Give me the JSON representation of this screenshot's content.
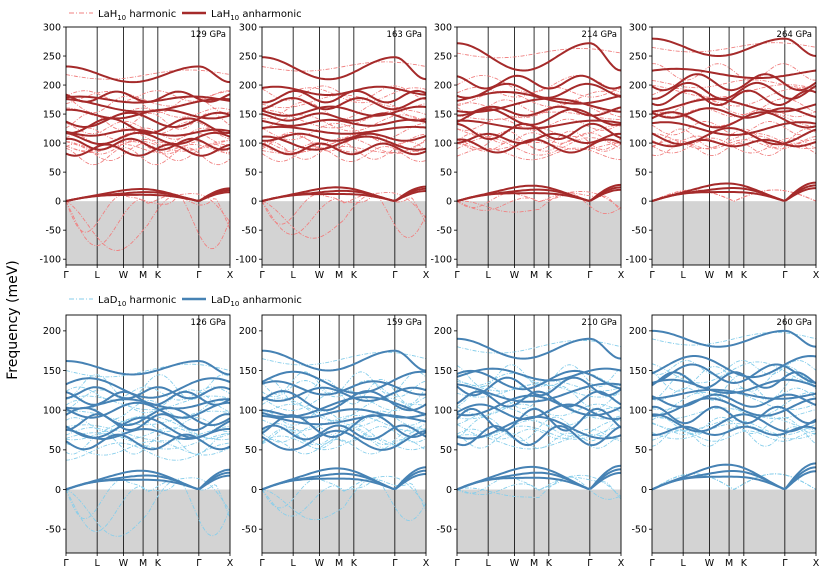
{
  "ylabel": "Frequency (meV)",
  "kpoints": [
    "Γ",
    "L",
    "W",
    "M",
    "K",
    "Γ",
    "X"
  ],
  "kpos": [
    0,
    0.19,
    0.35,
    0.47,
    0.56,
    0.81,
    1.0
  ],
  "colors": {
    "lah_harmonic": "#f08080",
    "lah_anharmonic": "#a52a2a",
    "lad_harmonic": "#87ceeb",
    "lad_anharmonic": "#4682b4",
    "imaginary_fill": "#d3d3d3"
  },
  "legends": {
    "top": {
      "harmonic": {
        "base": "LaH",
        "sub": "10",
        "rest": " harmonic"
      },
      "anharmonic": {
        "base": "LaH",
        "sub": "10",
        "rest": " anharmonic"
      }
    },
    "bottom": {
      "harmonic": {
        "base": "LaD",
        "sub": "10",
        "rest": " harmonic"
      },
      "anharmonic": {
        "base": "LaD",
        "sub": "10",
        "rest": " anharmonic"
      }
    }
  },
  "chart_data": [
    {
      "type": "line",
      "row": 0,
      "col": 0,
      "material": "LaH10",
      "pressure": "129 GPa",
      "ylim": [
        -110,
        300
      ],
      "yticks": [
        -100,
        -50,
        0,
        50,
        100,
        150,
        200,
        250,
        300
      ],
      "anharmonic_bands": [
        180,
        175,
        165,
        150,
        140,
        130,
        118,
        108,
        98,
        88
      ],
      "anharmonic_top": 225,
      "anharmonic_top_range": [
        205,
        232
      ],
      "harmonic_top": 218,
      "harmonic_min": -100,
      "low_acoustic_max": 22
    },
    {
      "type": "line",
      "row": 0,
      "col": 1,
      "material": "LaH10",
      "pressure": "163 GPa",
      "ylim": [
        -110,
        300
      ],
      "yticks": [
        -100,
        -50,
        0,
        50,
        100,
        150,
        200,
        250,
        300
      ],
      "anharmonic_bands": [
        190,
        180,
        168,
        155,
        145,
        135,
        122,
        110,
        100,
        90
      ],
      "anharmonic_top": 240,
      "anharmonic_top_range": [
        210,
        248
      ],
      "harmonic_top": 232,
      "harmonic_min": -80,
      "low_acoustic_max": 25
    },
    {
      "type": "line",
      "row": 0,
      "col": 2,
      "material": "LaH10",
      "pressure": "214 GPa",
      "ylim": [
        -110,
        300
      ],
      "yticks": [
        -100,
        -50,
        0,
        50,
        100,
        150,
        200,
        250,
        300
      ],
      "anharmonic_bands": [
        205,
        190,
        178,
        165,
        155,
        145,
        132,
        120,
        108,
        95
      ],
      "anharmonic_top": 262,
      "anharmonic_top_range": [
        225,
        272
      ],
      "harmonic_top": 255,
      "harmonic_min": -35,
      "low_acoustic_max": 28
    },
    {
      "type": "line",
      "row": 0,
      "col": 3,
      "material": "LaH10",
      "pressure": "264 GPa",
      "ylim": [
        -110,
        300
      ],
      "yticks": [
        -100,
        -50,
        0,
        50,
        100,
        150,
        200,
        250,
        300
      ],
      "anharmonic_bands": [
        220,
        205,
        190,
        178,
        165,
        152,
        140,
        125,
        112,
        100
      ],
      "anharmonic_top": 270,
      "anharmonic_top_range": [
        250,
        280
      ],
      "harmonic_top": 265,
      "harmonic_min": 0,
      "low_acoustic_max": 32
    },
    {
      "type": "line",
      "row": 1,
      "col": 0,
      "material": "LaD10",
      "pressure": "126 GPa",
      "ylim": [
        -80,
        220
      ],
      "yticks": [
        -50,
        0,
        50,
        100,
        150,
        200
      ],
      "anharmonic_bands": [
        128,
        122,
        115,
        108,
        100,
        92,
        85,
        78,
        70,
        60
      ],
      "anharmonic_top": 155,
      "anharmonic_top_range": [
        145,
        162
      ],
      "harmonic_top": 150,
      "harmonic_min": -75,
      "low_acoustic_max": 25
    },
    {
      "type": "line",
      "row": 1,
      "col": 1,
      "material": "LaD10",
      "pressure": "159 GPa",
      "ylim": [
        -80,
        220
      ],
      "yticks": [
        -50,
        0,
        50,
        100,
        150,
        200
      ],
      "anharmonic_bands": [
        135,
        128,
        120,
        112,
        104,
        96,
        88,
        80,
        72,
        62
      ],
      "anharmonic_top": 170,
      "anharmonic_top_range": [
        150,
        175
      ],
      "harmonic_top": 165,
      "harmonic_min": -55,
      "low_acoustic_max": 28
    },
    {
      "type": "line",
      "row": 1,
      "col": 2,
      "material": "LaD10",
      "pressure": "210 GPa",
      "ylim": [
        -80,
        220
      ],
      "yticks": [
        -50,
        0,
        50,
        100,
        150,
        200
      ],
      "anharmonic_bands": [
        145,
        138,
        130,
        122,
        114,
        106,
        98,
        88,
        78,
        68
      ],
      "anharmonic_top": 185,
      "anharmonic_top_range": [
        165,
        190
      ],
      "harmonic_top": 180,
      "harmonic_min": -25,
      "low_acoustic_max": 30
    },
    {
      "type": "line",
      "row": 1,
      "col": 3,
      "material": "LaD10",
      "pressure": "260 GPa",
      "ylim": [
        -80,
        220
      ],
      "yticks": [
        -50,
        0,
        50,
        100,
        150,
        200
      ],
      "anharmonic_bands": [
        155,
        146,
        138,
        130,
        120,
        112,
        104,
        94,
        84,
        74
      ],
      "anharmonic_top": 195,
      "anharmonic_top_range": [
        180,
        200
      ],
      "harmonic_top": 190,
      "harmonic_min": 0,
      "low_acoustic_max": 33
    }
  ]
}
